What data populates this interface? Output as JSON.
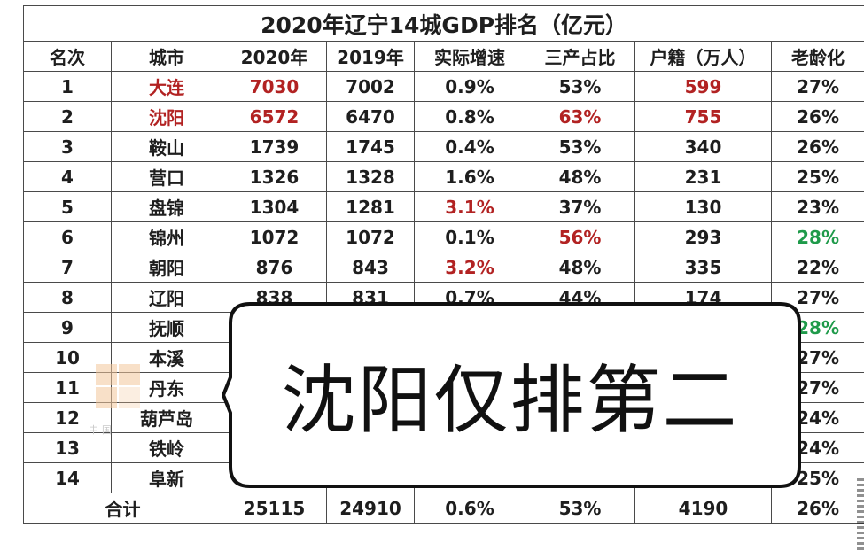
{
  "title": "2020年辽宁14城GDP排名（亿元）",
  "headers": [
    "名次",
    "城市",
    "2020年",
    "2019年",
    "实际增速",
    "三产占比",
    "户籍（万人）",
    "老龄化"
  ],
  "rows": [
    {
      "rank": "1",
      "city": "大连",
      "gdp2020": "7030",
      "gdp2019": "7002",
      "growth": "0.9%",
      "tertiary": "53%",
      "pop": "599",
      "aging": "27%"
    },
    {
      "rank": "2",
      "city": "沈阳",
      "gdp2020": "6572",
      "gdp2019": "6470",
      "growth": "0.8%",
      "tertiary": "63%",
      "pop": "755",
      "aging": "26%"
    },
    {
      "rank": "3",
      "city": "鞍山",
      "gdp2020": "1739",
      "gdp2019": "1745",
      "growth": "0.4%",
      "tertiary": "53%",
      "pop": "340",
      "aging": "26%"
    },
    {
      "rank": "4",
      "city": "营口",
      "gdp2020": "1326",
      "gdp2019": "1328",
      "growth": "1.6%",
      "tertiary": "48%",
      "pop": "231",
      "aging": "25%"
    },
    {
      "rank": "5",
      "city": "盘锦",
      "gdp2020": "1304",
      "gdp2019": "1281",
      "growth": "3.1%",
      "tertiary": "37%",
      "pop": "130",
      "aging": "23%"
    },
    {
      "rank": "6",
      "city": "锦州",
      "gdp2020": "1072",
      "gdp2019": "1072",
      "growth": "0.1%",
      "tertiary": "56%",
      "pop": "293",
      "aging": "28%"
    },
    {
      "rank": "7",
      "city": "朝阳",
      "gdp2020": "876",
      "gdp2019": "843",
      "growth": "3.2%",
      "tertiary": "48%",
      "pop": "335",
      "aging": "22%"
    },
    {
      "rank": "8",
      "city": "辽阳",
      "gdp2020": "838",
      "gdp2019": "831",
      "growth": "0.7%",
      "tertiary": "44%",
      "pop": "174",
      "aging": "27%"
    },
    {
      "rank": "9",
      "city": "抚顺",
      "gdp2020": "",
      "gdp2019": "",
      "growth": "",
      "tertiary": "",
      "pop": "",
      "aging": "28%"
    },
    {
      "rank": "10",
      "city": "本溪",
      "gdp2020": "",
      "gdp2019": "",
      "growth": "",
      "tertiary": "",
      "pop": "",
      "aging": "27%"
    },
    {
      "rank": "11",
      "city": "丹东",
      "gdp2020": "",
      "gdp2019": "",
      "growth": "",
      "tertiary": "",
      "pop": "",
      "aging": "27%"
    },
    {
      "rank": "12",
      "city": "葫芦岛",
      "gdp2020": "",
      "gdp2019": "",
      "growth": "",
      "tertiary": "",
      "pop": "",
      "aging": "24%"
    },
    {
      "rank": "13",
      "city": "铁岭",
      "gdp2020": "",
      "gdp2019": "",
      "growth": "",
      "tertiary": "",
      "pop": "",
      "aging": "24%"
    },
    {
      "rank": "14",
      "city": "阜新",
      "gdp2020": "",
      "gdp2019": "",
      "growth": "",
      "tertiary": "",
      "pop": "",
      "aging": "25%"
    }
  ],
  "total": {
    "label": "合计",
    "gdp2020": "25115",
    "gdp2019": "24910",
    "growth": "0.6%",
    "tertiary": "53%",
    "pop": "4190",
    "aging": "26%"
  },
  "overlay_text": "沈阳仅排第二",
  "watermark_text": "中国",
  "colors": {
    "highlight_red": "#b22222",
    "highlight_green": "#1f9a4a",
    "grid": "#4a4a4a"
  }
}
